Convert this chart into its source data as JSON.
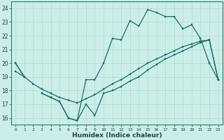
{
  "xlabel": "Humidex (Indice chaleur)",
  "background_color": "#cceee8",
  "grid_color": "#aaddcc",
  "line_color": "#1a6b6b",
  "x": [
    0,
    1,
    2,
    3,
    4,
    5,
    6,
    7,
    8,
    9,
    10,
    11,
    12,
    13,
    14,
    15,
    16,
    17,
    18,
    19,
    20,
    21,
    22,
    23
  ],
  "y_upper": [
    20,
    19,
    null,
    17.8,
    17.5,
    17.2,
    16.0,
    15.8,
    18.8,
    18.8,
    20.0,
    21.8,
    21.7,
    23.1,
    22.7,
    23.9,
    23.7,
    23.4,
    23.4,
    22.5,
    22.8,
    21.8,
    20.0,
    18.8
  ],
  "y_lower": [
    20,
    19,
    null,
    17.8,
    17.5,
    17.2,
    16.0,
    15.8,
    17.0,
    16.2,
    17.8,
    18.0,
    18.3,
    18.7,
    19.0,
    19.5,
    19.9,
    20.3,
    20.6,
    20.9,
    21.2,
    21.5,
    21.7,
    18.8
  ],
  "y_trend": [
    19.4,
    19.0,
    18.5,
    18.1,
    17.8,
    17.5,
    17.3,
    17.1,
    17.4,
    17.7,
    18.1,
    18.5,
    18.8,
    19.2,
    19.6,
    20.0,
    20.3,
    20.6,
    20.9,
    21.2,
    21.4,
    21.6,
    21.7,
    18.8
  ],
  "ylim": [
    15.5,
    24.5
  ],
  "yticks": [
    16,
    17,
    18,
    19,
    20,
    21,
    22,
    23,
    24
  ],
  "xticks": [
    0,
    1,
    2,
    3,
    4,
    5,
    6,
    7,
    8,
    9,
    10,
    11,
    12,
    13,
    14,
    15,
    16,
    17,
    18,
    19,
    20,
    21,
    22,
    23
  ]
}
